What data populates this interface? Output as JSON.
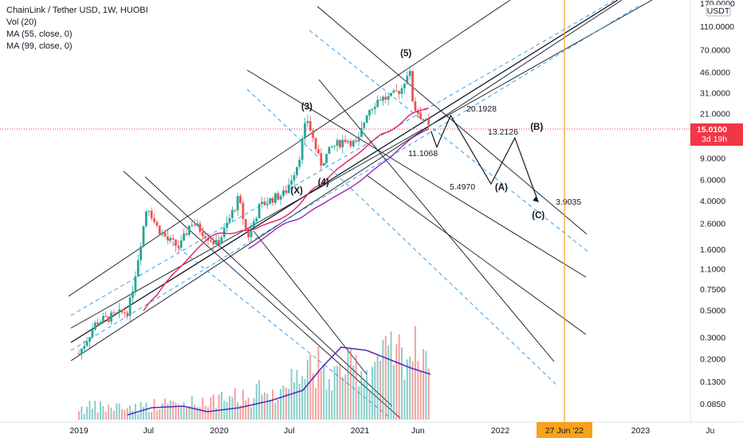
{
  "legend": {
    "title": "ChainLink / Tether USD, 1W, HUOBI",
    "vol": "Vol (20)",
    "ma55": "MA (55, close, 0)",
    "ma99": "MA (99, close, 0)"
  },
  "colors": {
    "up": "#26a69a",
    "down": "#ef5350",
    "ma55": "#e91e63",
    "ma99": "#9c27b0",
    "vol_ma": "#5b2cb8",
    "channel": "#131722",
    "dashed": "#2196f3",
    "vline": "#f7a21b",
    "price_badge": "#f23645"
  },
  "price_axis": {
    "currency": "USDT",
    "ticks": [
      "170.0000",
      "110.0000",
      "70.0000",
      "46.0000",
      "31.0000",
      "21.0000",
      "9.0000",
      "6.0000",
      "4.0000",
      "2.6000",
      "1.6000",
      "1.1000",
      "0.7500",
      "0.5000",
      "0.3000",
      "0.2000",
      "0.1300",
      "0.0850"
    ],
    "current_price": "15.0100",
    "countdown": "3d 19h"
  },
  "time_axis": {
    "ticks": [
      "2019",
      "Jul",
      "2020",
      "Jul",
      "2021",
      "Jun",
      "2022",
      "2023",
      "Ju"
    ],
    "highlight": "27 Jun '22"
  },
  "chart_data": {
    "type": "candlestick",
    "scale": "log",
    "ylim": [
      0.07,
      185
    ],
    "series": [
      {
        "name": "Vol (20)",
        "type": "volume"
      },
      {
        "name": "MA (55, close, 0)",
        "type": "line"
      },
      {
        "name": "MA (99, close, 0)",
        "type": "line"
      }
    ],
    "waves": [
      {
        "label": "(3)",
        "date": "2020-08-16",
        "price": 19.5
      },
      {
        "label": "(4)",
        "date": "2020-09-20",
        "price": 7.5
      },
      {
        "label": "(X)",
        "date": "2020-08-02",
        "price": 5.5
      },
      {
        "label": "(5)",
        "date": "2021-05-09",
        "price": 52
      },
      {
        "label": "(A)",
        "date": "2021-12-10",
        "price": 5.5
      },
      {
        "label": "(B)",
        "date": "2022-02-15",
        "price": 13.2
      },
      {
        "label": "(C)",
        "date": "2022-04-10",
        "price": 3.9
      }
    ],
    "levels": [
      {
        "label": "20.1928",
        "value": 20.1928
      },
      {
        "label": "13.2126",
        "value": 13.2126
      },
      {
        "label": "11.1068",
        "value": 11.1068
      },
      {
        "label": "5.4970",
        "value": 5.497
      },
      {
        "label": "3.9035",
        "value": 3.9035
      }
    ],
    "projection": [
      {
        "date": "2021-07-20",
        "price": 11.1
      },
      {
        "date": "2021-08-25",
        "price": 20.19
      },
      {
        "date": "2021-12-08",
        "price": 5.5
      },
      {
        "date": "2022-02-08",
        "price": 13.21
      },
      {
        "date": "2022-04-10",
        "price": 3.9
      }
    ],
    "vertical_line": "2022-06-27",
    "current_price": 15.01
  }
}
